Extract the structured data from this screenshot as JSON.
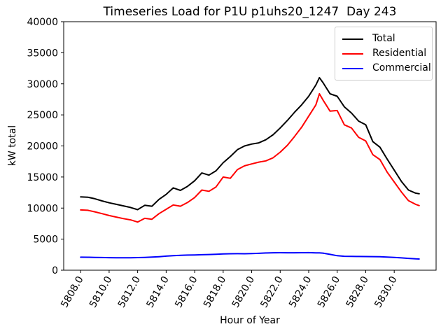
{
  "chart_data": {
    "type": "line",
    "title": "Timeseries Load for P1U p1uhs20_1247  Day 243",
    "xlabel": "Hour of Year",
    "ylabel": "kW total",
    "xlim": [
      5806.8125,
      5832.9375
    ],
    "ylim": [
      0,
      40000
    ],
    "grid": false,
    "legend_position": "upper right",
    "xticks": {
      "rotation": 60,
      "values": [
        5808,
        5810,
        5812,
        5814,
        5816,
        5818,
        5820,
        5822,
        5824,
        5826,
        5828,
        5830
      ],
      "labels": [
        "5808.0",
        "5810.0",
        "5812.0",
        "5814.0",
        "5816.0",
        "5818.0",
        "5820.0",
        "5822.0",
        "5824.0",
        "5826.0",
        "5828.0",
        "5830.0"
      ]
    },
    "yticks": {
      "values": [
        0,
        5000,
        10000,
        15000,
        20000,
        25000,
        30000,
        35000,
        40000
      ],
      "labels": [
        "0",
        "5000",
        "10000",
        "15000",
        "20000",
        "25000",
        "30000",
        "35000",
        "40000"
      ]
    },
    "x": [
      5808.0,
      5808.5,
      5809.0,
      5809.5,
      5810.0,
      5810.5,
      5811.0,
      5811.5,
      5812.0,
      5812.5,
      5813.0,
      5813.5,
      5814.0,
      5814.5,
      5815.0,
      5815.5,
      5816.0,
      5816.5,
      5817.0,
      5817.5,
      5818.0,
      5818.5,
      5819.0,
      5819.5,
      5820.0,
      5820.5,
      5821.0,
      5821.5,
      5822.0,
      5822.5,
      5823.0,
      5823.5,
      5824.0,
      5824.5,
      5824.75,
      5825.0,
      5825.5,
      5826.0,
      5826.5,
      5827.0,
      5827.5,
      5828.0,
      5828.5,
      5829.0,
      5829.5,
      5830.0,
      5830.5,
      5831.0,
      5831.5,
      5831.75
    ],
    "series": [
      {
        "name": "Total",
        "color": "#000000",
        "y": [
          11800,
          11750,
          11500,
          11150,
          10850,
          10600,
          10350,
          10100,
          9750,
          10450,
          10300,
          11400,
          12200,
          13250,
          12850,
          13500,
          14400,
          15650,
          15300,
          16000,
          17300,
          18300,
          19400,
          20000,
          20300,
          20500,
          21000,
          21800,
          22900,
          24100,
          25400,
          26600,
          28000,
          29800,
          31000,
          30200,
          28400,
          28000,
          26300,
          25300,
          24000,
          23400,
          20700,
          19800,
          17900,
          16100,
          14300,
          12900,
          12400,
          12300
        ]
      },
      {
        "name": "Residential",
        "color": "#ff0000",
        "y": [
          9700,
          9650,
          9400,
          9100,
          8800,
          8550,
          8300,
          8100,
          7750,
          8350,
          8200,
          9100,
          9800,
          10500,
          10300,
          10900,
          11700,
          12900,
          12700,
          13400,
          15000,
          14800,
          16200,
          16800,
          17100,
          17400,
          17600,
          18100,
          19000,
          20100,
          21500,
          23000,
          24800,
          26600,
          28400,
          27400,
          25600,
          25700,
          23400,
          22900,
          21400,
          20800,
          18600,
          17800,
          15800,
          14200,
          12600,
          11200,
          10600,
          10400
        ]
      },
      {
        "name": "Commercial",
        "color": "#0000ff",
        "y": [
          2100,
          2080,
          2060,
          2040,
          2020,
          2010,
          2000,
          2010,
          2030,
          2060,
          2110,
          2180,
          2260,
          2330,
          2390,
          2430,
          2460,
          2490,
          2520,
          2560,
          2610,
          2650,
          2660,
          2650,
          2670,
          2720,
          2770,
          2800,
          2820,
          2810,
          2800,
          2820,
          2830,
          2790,
          2780,
          2750,
          2550,
          2330,
          2240,
          2220,
          2210,
          2200,
          2190,
          2170,
          2120,
          2050,
          1980,
          1900,
          1830,
          1800
        ]
      }
    ]
  }
}
